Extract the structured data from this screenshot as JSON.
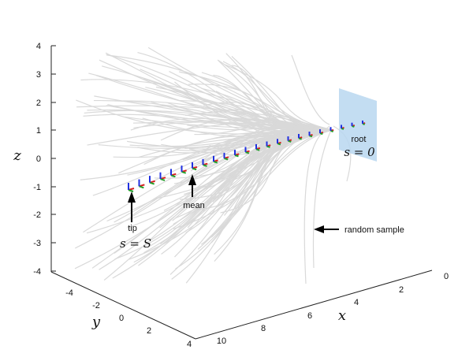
{
  "axes": {
    "x_label": "x",
    "y_label": "y",
    "z_label": "z",
    "x_ticks": [
      "0",
      "2",
      "4",
      "6",
      "8",
      "10"
    ],
    "y_ticks": [
      "-4",
      "-2",
      "0",
      "2",
      "4"
    ],
    "z_ticks": [
      "4",
      "3",
      "2",
      "1",
      "0",
      "-1",
      "-2",
      "-3",
      "-4"
    ]
  },
  "annotations": {
    "tip": "tip",
    "tip_math": "s = S",
    "mean": "mean",
    "root": "root",
    "root_math": "s = 0",
    "random_sample": "random sample"
  },
  "colors": {
    "samples": "#d9d9d9",
    "root_plane": "#b8d7f0",
    "mean_curve_red": "#d62020",
    "mean_curve_green": "#22a02a",
    "frame_blue": "#2030e0",
    "arrow": "#000000"
  }
}
